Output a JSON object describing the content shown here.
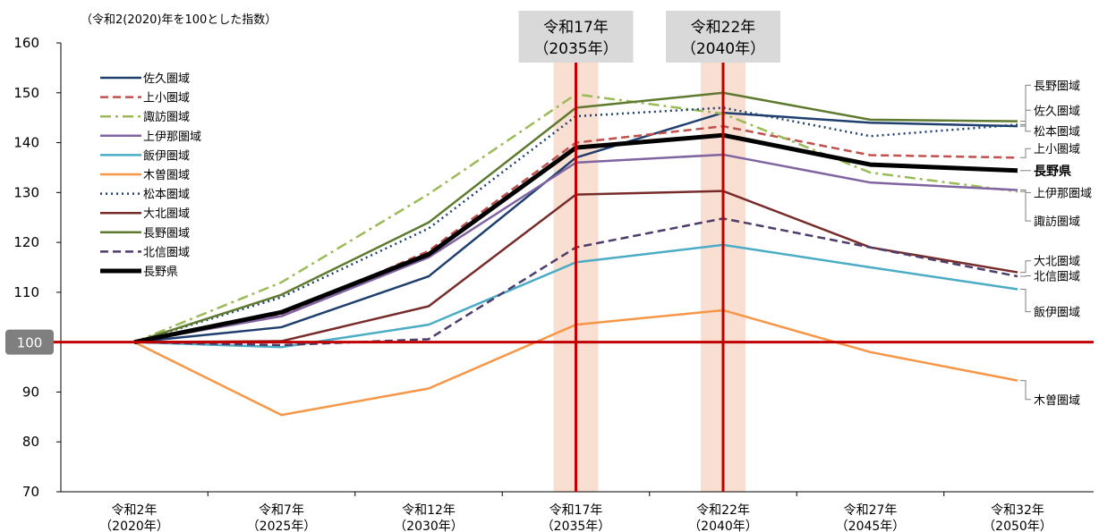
{
  "chart_data": {
    "type": "line",
    "subtitle": "（令和2(2020)年を100とした指数）",
    "ylim": [
      70,
      160
    ],
    "yticks": [
      70,
      80,
      90,
      100,
      110,
      120,
      130,
      140,
      150,
      160
    ],
    "baseline_label": "100",
    "baseline_value": 100,
    "categories": [
      [
        "令和2年",
        "（2020年）"
      ],
      [
        "令和7年",
        "（2025年）"
      ],
      [
        "令和12年",
        "（2030年）"
      ],
      [
        "令和17年",
        "（2035年）"
      ],
      [
        "令和22年",
        "（2040年）"
      ],
      [
        "令和27年",
        "（2045年）"
      ],
      [
        "令和32年",
        "（2050年）"
      ]
    ],
    "highlights": [
      {
        "index": 3,
        "line1": "令和17年",
        "line2": "（2035年）"
      },
      {
        "index": 4,
        "line1": "令和22年",
        "line2": "（2040年）"
      }
    ],
    "series": [
      {
        "name": "佐久圏域",
        "color": "#1F3F6E",
        "style": "solid",
        "width": 2.5,
        "values": [
          100,
          103,
          113.2,
          137,
          146,
          144,
          143.3
        ]
      },
      {
        "name": "上小圏域",
        "color": "#C0504D",
        "style": "dash",
        "width": 2.5,
        "values": [
          100,
          105.3,
          118.3,
          140,
          143.3,
          137.5,
          137
        ]
      },
      {
        "name": "諏訪圏域",
        "color": "#9BBB59",
        "style": "dashdot",
        "width": 2.5,
        "values": [
          100,
          112,
          129.7,
          149.7,
          145.8,
          134,
          130.2
        ]
      },
      {
        "name": "上伊那圏域",
        "color": "#8064A2",
        "style": "solid",
        "width": 2.5,
        "values": [
          100,
          105.2,
          117,
          136,
          137.6,
          132,
          130.5
        ]
      },
      {
        "name": "飯伊圏域",
        "color": "#4BACC6",
        "style": "solid",
        "width": 2.5,
        "values": [
          100,
          99,
          103.5,
          116,
          119.5,
          115,
          110.6
        ]
      },
      {
        "name": "木曽圏域",
        "color": "#F79646",
        "style": "solid",
        "width": 2.5,
        "values": [
          100,
          85.4,
          90.7,
          103.5,
          106.4,
          98,
          92.3
        ]
      },
      {
        "name": "松本圏域",
        "color": "#1F3F6E",
        "style": "dot",
        "width": 2.5,
        "values": [
          100,
          109,
          122.8,
          145.3,
          147,
          141.3,
          143.6
        ]
      },
      {
        "name": "大北圏域",
        "color": "#772C2A",
        "style": "solid",
        "width": 2.5,
        "values": [
          100,
          100.2,
          107.2,
          129.6,
          130.3,
          119,
          114
        ]
      },
      {
        "name": "長野圏域",
        "color": "#5E7A2E",
        "style": "solid",
        "width": 2.5,
        "values": [
          100,
          109.5,
          124,
          147,
          150,
          144.6,
          144.3
        ]
      },
      {
        "name": "北信圏域",
        "color": "#4E3D6B",
        "style": "dash",
        "width": 2.5,
        "values": [
          100,
          99.4,
          100.6,
          119,
          124.8,
          119,
          113.2
        ]
      },
      {
        "name": "長野県",
        "color": "#000000",
        "style": "solid",
        "width": 5,
        "values": [
          100,
          106,
          117.6,
          139,
          141.5,
          135.6,
          134.4
        ]
      }
    ],
    "end_labels": [
      {
        "text": "長野圏域",
        "bold": false,
        "y": 151.5,
        "series": "長野圏域"
      },
      {
        "text": "佐久圏域",
        "bold": false,
        "y": 146.5,
        "series": "佐久圏域"
      },
      {
        "text": "松本圏域",
        "bold": false,
        "y": 142.3,
        "series": "松本圏域"
      },
      {
        "text": "上小圏域",
        "bold": false,
        "y": 138.8,
        "series": "上小圏域"
      },
      {
        "text": "長野県",
        "bold": true,
        "y": 134.4,
        "series": "長野県"
      },
      {
        "text": "上伊那圏域",
        "bold": false,
        "y": 130,
        "series": "上伊那圏域"
      },
      {
        "text": "諏訪圏域",
        "bold": false,
        "y": 124.3,
        "series": "諏訪圏域"
      },
      {
        "text": "大北圏域",
        "bold": false,
        "y": 116.3,
        "series": "大北圏域"
      },
      {
        "text": "北信圏域",
        "bold": false,
        "y": 113.3,
        "series": "北信圏域"
      },
      {
        "text": "飯伊圏域",
        "bold": false,
        "y": 106.1,
        "series": "飯伊圏域"
      },
      {
        "text": "木曽圏域",
        "bold": false,
        "y": 88.5,
        "series": "木曽圏域"
      }
    ],
    "colors": {
      "highlight_band": "#F9DFD1",
      "highlight_line": "#C00000",
      "baseline": "#C00000",
      "callout_box": "#D9D9D9",
      "baseline_label_bg": "#7F7F7F",
      "axis": "#000000"
    }
  }
}
